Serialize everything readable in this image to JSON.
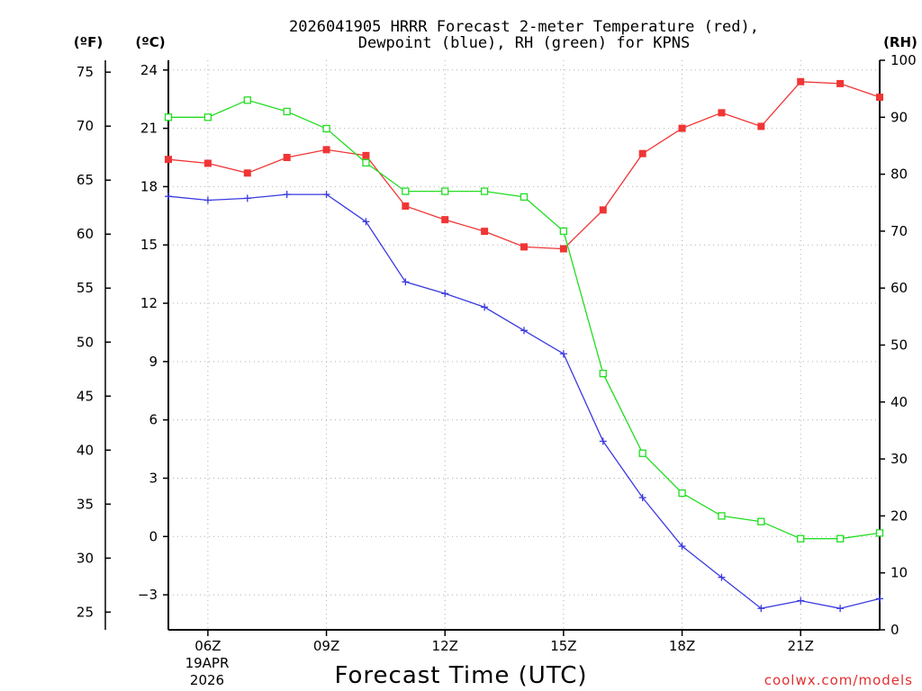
{
  "chart_data": {
    "type": "line",
    "title_line1": "2026041905 HRRR Forecast 2-meter Temperature (red),",
    "title_line2": "Dewpoint (blue), RH (green) for KPNS",
    "xlabel": "Forecast Time (UTC)",
    "credit": "coolwx.com/models",
    "units": {
      "fahrenheit": "(ºF)",
      "celsius": "(ºC)",
      "rh": "(RH)"
    },
    "x_hours": [
      5,
      6,
      7,
      8,
      9,
      10,
      11,
      12,
      13,
      14,
      15,
      16,
      17,
      18,
      19,
      20,
      21,
      22,
      23
    ],
    "xlim": [
      5,
      23
    ],
    "x_ticks": [
      {
        "hour": 6,
        "label": "06Z"
      },
      {
        "hour": 9,
        "label": "09Z"
      },
      {
        "hour": 12,
        "label": "12Z"
      },
      {
        "hour": 15,
        "label": "15Z"
      },
      {
        "hour": 18,
        "label": "18Z"
      },
      {
        "hour": 21,
        "label": "21Z"
      }
    ],
    "date_label": [
      "19APR",
      "2026"
    ],
    "celsius_axis": {
      "ylim": [
        -4.8,
        24.5
      ],
      "ticks": [
        24,
        21,
        18,
        15,
        12,
        9,
        6,
        3,
        0,
        -3
      ]
    },
    "fahrenheit_axis": {
      "ticks": [
        75,
        70,
        65,
        60,
        55,
        50,
        45,
        40,
        35,
        30,
        25
      ]
    },
    "rh_axis": {
      "ylim": [
        0,
        100
      ],
      "ticks": [
        100,
        90,
        80,
        70,
        60,
        50,
        40,
        30,
        20,
        10,
        0
      ]
    },
    "series": [
      {
        "name": "Temperature",
        "axis": "celsius",
        "color": "#f03535",
        "marker": "filled-square",
        "values": [
          19.4,
          19.2,
          18.7,
          19.5,
          19.9,
          19.6,
          17.0,
          16.3,
          15.7,
          14.9,
          14.8,
          16.8,
          19.7,
          21.0,
          21.8,
          21.1,
          23.4,
          23.3,
          22.6
        ]
      },
      {
        "name": "Dewpoint",
        "axis": "celsius",
        "color": "#3a3ae0",
        "marker": "plus",
        "values": [
          17.5,
          17.3,
          17.4,
          17.6,
          17.6,
          16.2,
          13.1,
          12.5,
          11.8,
          10.6,
          9.4,
          4.9,
          2.0,
          -0.5,
          -2.1,
          -3.7,
          -3.3,
          -3.7,
          -3.2
        ]
      },
      {
        "name": "RH",
        "axis": "rh",
        "color": "#22dd22",
        "marker": "open-square",
        "values": [
          90,
          90,
          93,
          91,
          88,
          82,
          77,
          77,
          77,
          76,
          70,
          45,
          31,
          24,
          20,
          19,
          16,
          16,
          17
        ]
      }
    ]
  }
}
